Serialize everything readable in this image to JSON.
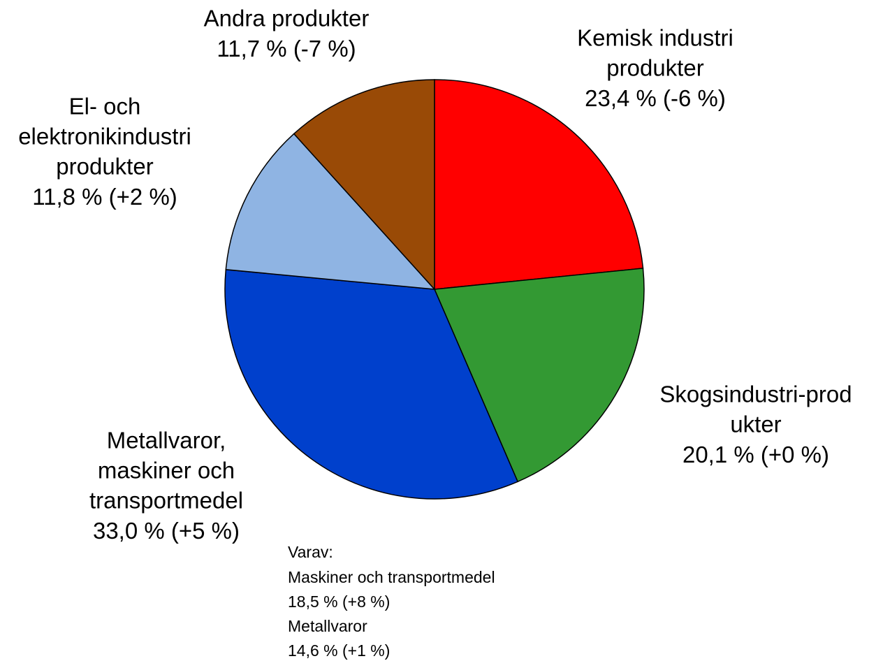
{
  "chart_data": {
    "type": "pie",
    "categories": [
      [
        "Kemisk industri",
        "produkter"
      ],
      [
        "Skogsindustri-prod",
        "ukter"
      ],
      [
        "Metallvaror,",
        "maskiner och",
        "transportmedel"
      ],
      [
        "El- och",
        "elektronikindustri",
        "produkter"
      ],
      [
        "Andra produkter"
      ]
    ],
    "values": [
      23.4,
      20.1,
      33.0,
      11.8,
      11.7
    ],
    "value_labels": [
      "23,4 %",
      "20,1 %",
      "33,0 %",
      "11,8 %",
      "11,7 %"
    ],
    "change_labels": [
      "(-6 %)",
      "(+0 %)",
      "(+5 %)",
      "(+2 %)",
      "(-7 %)"
    ],
    "colors": [
      "#ff0000",
      "#339933",
      "#0040cc",
      "#8fb4e3",
      "#994a06"
    ],
    "annotation": [
      "Varav:",
      "Maskiner och transportmedel",
      "18,5 % (+8 %)",
      "Metallvaror",
      "14,6 % (+1 %)"
    ]
  }
}
